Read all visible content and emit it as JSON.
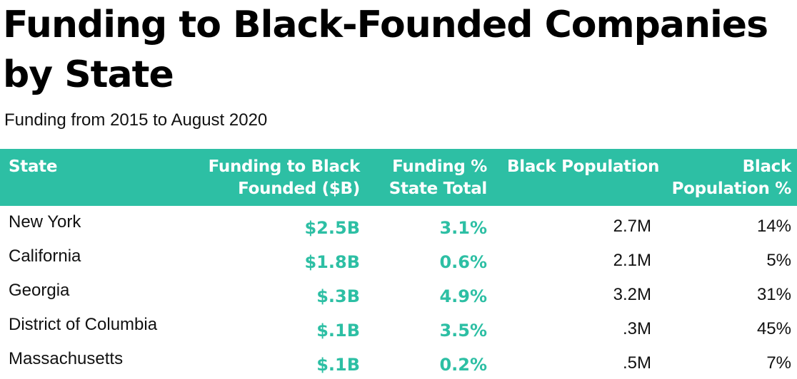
{
  "title": "Funding to Black-Founded Companies by State",
  "subtitle": "Funding from 2015 to August 2020",
  "colors": {
    "accent": "#2dbfa4",
    "header_text": "#ffffff",
    "body_text": "#111111"
  },
  "chart_data": {
    "type": "table",
    "title": "Funding to Black-Founded Companies by State",
    "subtitle": "Funding from 2015 to August 2020",
    "columns": [
      "State",
      "Funding to Black\nFounded  ($B)",
      "Funding %\nState Total",
      "Black Population",
      "Black\nPopulation %"
    ],
    "rows": [
      {
        "state": "New York",
        "funding": "$2.5B",
        "funding_pct": "3.1%",
        "black_population": "2.7M",
        "black_population_pct": "14%"
      },
      {
        "state": "California",
        "funding": "$1.8B",
        "funding_pct": "0.6%",
        "black_population": "2.1M",
        "black_population_pct": "5%"
      },
      {
        "state": "Georgia",
        "funding": "$.3B",
        "funding_pct": "4.9%",
        "black_population": "3.2M",
        "black_population_pct": "31%"
      },
      {
        "state": "District of Columbia",
        "funding": "$.1B",
        "funding_pct": "3.5%",
        "black_population": ".3M",
        "black_population_pct": "45%"
      },
      {
        "state": "Massachusetts",
        "funding": "$.1B",
        "funding_pct": "0.2%",
        "black_population": ".5M",
        "black_population_pct": "7%"
      }
    ]
  }
}
